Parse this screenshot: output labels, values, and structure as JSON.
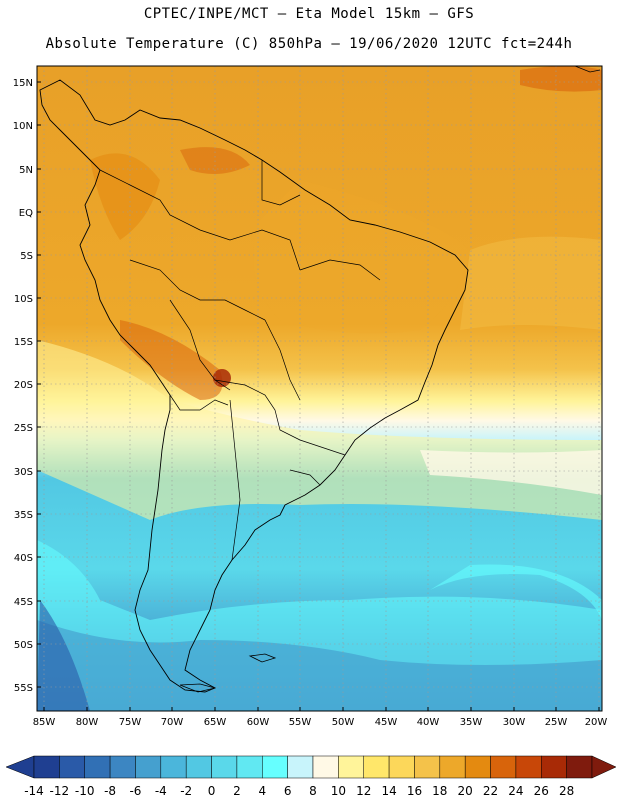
{
  "header": {
    "line1": "CPTEC/INPE/MCT –  Eta Model 15km – GFS",
    "line2": "Absolute Temperature (C) 850hPa – 19/06/2020 12UTC fct=244h"
  },
  "map": {
    "lat_labels": [
      "15N",
      "10N",
      "5N",
      "EQ",
      "5S",
      "10S",
      "15S",
      "20S",
      "25S",
      "30S",
      "35S",
      "40S",
      "45S",
      "50S",
      "55S"
    ],
    "lon_labels": [
      "85W",
      "80W",
      "75W",
      "70W",
      "65W",
      "60W",
      "55W",
      "50W",
      "45W",
      "40W",
      "35W",
      "30W",
      "25W",
      "20W"
    ]
  },
  "colorbar": {
    "labels": [
      "-14",
      "-12",
      "-10",
      "-8",
      "-6",
      "-4",
      "-2",
      "0",
      "2",
      "4",
      "6",
      "8",
      "10",
      "12",
      "14",
      "16",
      "18",
      "20",
      "22",
      "24",
      "26",
      "28"
    ],
    "colors": [
      "#1f3f91",
      "#2a5aa8",
      "#3170b5",
      "#3c86c2",
      "#45a0cf",
      "#4bb6db",
      "#52c8e3",
      "#5ad8ea",
      "#61e8f2",
      "#66ffff",
      "#c8f4fb",
      "#fff9e6",
      "#fff49a",
      "#ffe76a",
      "#fcd75a",
      "#f4c24a",
      "#eda82a",
      "#e48a10",
      "#d8640b",
      "#c84708",
      "#a82a06",
      "#7f1b0d"
    ]
  }
}
